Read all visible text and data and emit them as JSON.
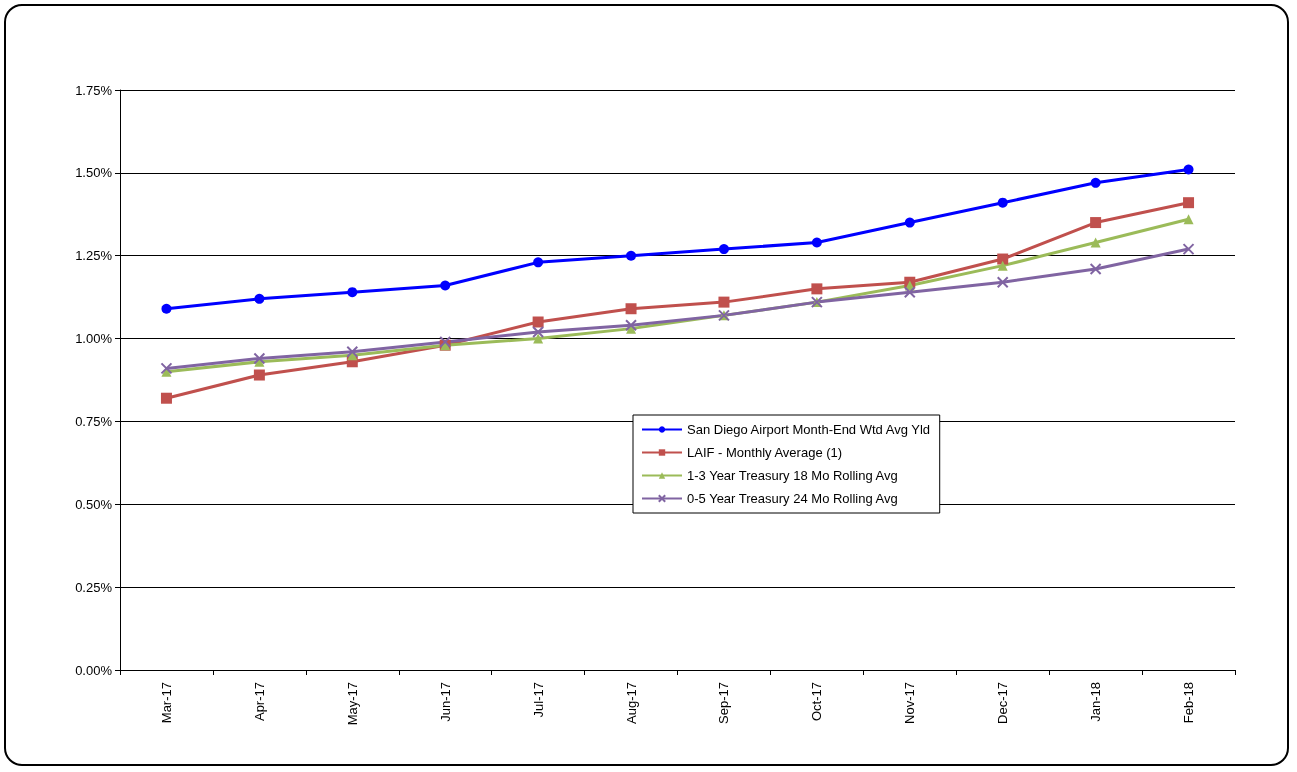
{
  "chart_data": {
    "type": "line",
    "categories": [
      "Mar-17",
      "Apr-17",
      "May-17",
      "Jun-17",
      "Jul-17",
      "Aug-17",
      "Sep-17",
      "Oct-17",
      "Nov-17",
      "Dec-17",
      "Jan-18",
      "Feb-18"
    ],
    "series": [
      {
        "name": "San Diego Airport Month-End Wtd Avg Yld",
        "color": "#0000ff",
        "marker": "circle",
        "values": [
          1.09,
          1.12,
          1.14,
          1.16,
          1.23,
          1.25,
          1.27,
          1.29,
          1.35,
          1.41,
          1.47,
          1.51
        ]
      },
      {
        "name": "LAIF - Monthly Average (1)",
        "color": "#c0504d",
        "marker": "square",
        "values": [
          0.82,
          0.89,
          0.93,
          0.98,
          1.05,
          1.09,
          1.11,
          1.15,
          1.17,
          1.24,
          1.35,
          1.41
        ]
      },
      {
        "name": "1-3 Year Treasury 18 Mo Rolling Avg",
        "color": "#9bbb59",
        "marker": "triangle",
        "values": [
          0.9,
          0.93,
          0.95,
          0.98,
          1.0,
          1.03,
          1.07,
          1.11,
          1.16,
          1.22,
          1.29,
          1.36
        ]
      },
      {
        "name": "0-5 Year Treasury 24 Mo Rolling Avg",
        "color": "#8064a2",
        "marker": "cross",
        "values": [
          0.91,
          0.94,
          0.96,
          0.99,
          1.02,
          1.04,
          1.07,
          1.11,
          1.14,
          1.17,
          1.21,
          1.27
        ]
      }
    ],
    "ylim": [
      0,
      1.75
    ],
    "yticks": [
      {
        "value": 0,
        "label": "0.00%"
      },
      {
        "value": 0.25,
        "label": "0.25%"
      },
      {
        "value": 0.5,
        "label": "0.50%"
      },
      {
        "value": 0.75,
        "label": "0.75%"
      },
      {
        "value": 1,
        "label": "1.00%"
      },
      {
        "value": 1.25,
        "label": "1.25%"
      },
      {
        "value": 1.5,
        "label": "1.50%"
      },
      {
        "value": 1.75,
        "label": "1.75%"
      }
    ],
    "grid": "y",
    "legend": "center",
    "line_style": "solid"
  }
}
